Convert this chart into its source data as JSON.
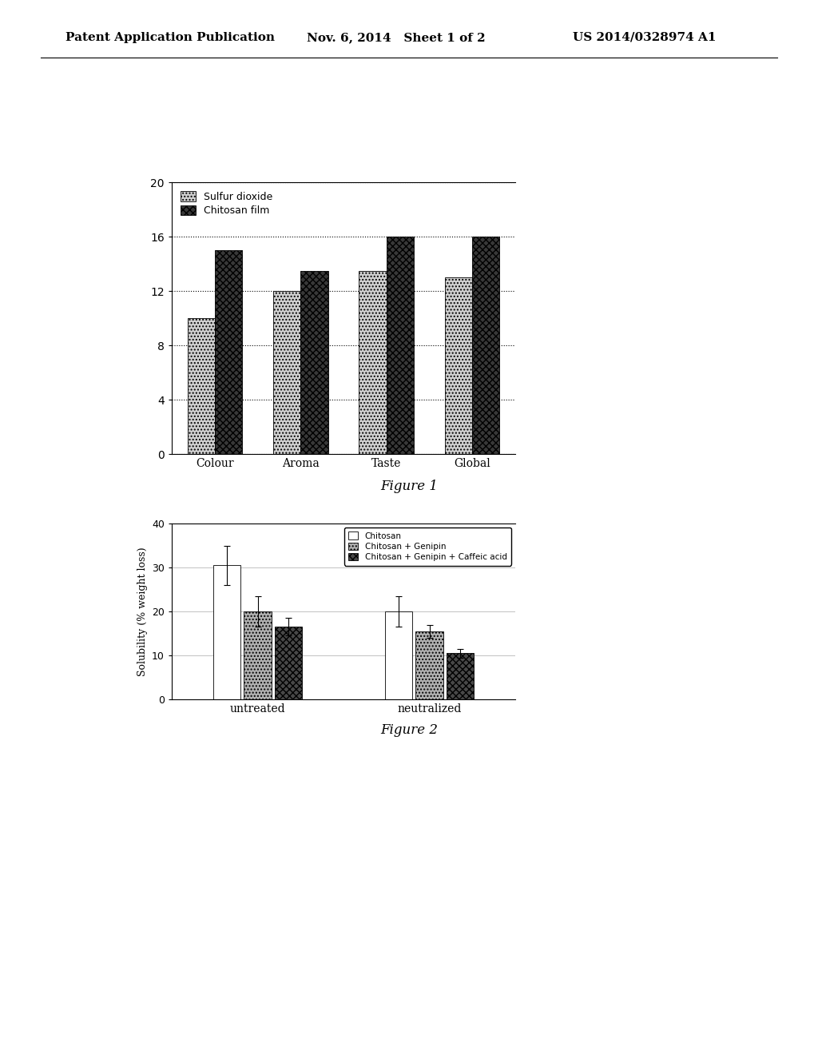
{
  "header_left": "Patent Application Publication",
  "header_mid": "Nov. 6, 2014   Sheet 1 of 2",
  "header_right": "US 2014/0328974 A1",
  "fig1": {
    "categories": [
      "Colour",
      "Aroma",
      "Taste",
      "Global"
    ],
    "sulfur_dioxide": [
      10.0,
      12.0,
      13.5,
      13.0
    ],
    "chitosan_film": [
      15.0,
      13.5,
      16.0,
      16.0
    ],
    "ylim": [
      0,
      20
    ],
    "yticks": [
      0,
      4,
      8,
      12,
      16,
      20
    ],
    "legend1": "Sulfur dioxide",
    "legend2": "Chitosan film",
    "figure_label": "Figure 1",
    "color_sulfur": "#d0d0d0",
    "color_chitosan": "#383838",
    "hatch_sulfur": "....",
    "hatch_chitosan": "xxxx"
  },
  "fig2": {
    "groups": [
      "untreated",
      "neutralized"
    ],
    "chitosan_vals": [
      30.5,
      20.0
    ],
    "chitosan_err": [
      4.5,
      3.5
    ],
    "genipin_vals": [
      20.0,
      15.5
    ],
    "genipin_err": [
      3.5,
      1.5
    ],
    "caffeic_vals": [
      16.5,
      10.5
    ],
    "caffeic_err": [
      2.0,
      1.0
    ],
    "ylim": [
      0,
      40
    ],
    "yticks": [
      0,
      10,
      20,
      30,
      40
    ],
    "ylabel": "Solubility (% weight loss)",
    "legend1": "Chitosan",
    "legend2": "Chitosan + Genipin",
    "legend3": "Chitosan + Genipin + Caffeic acid",
    "figure_label": "Figure 2",
    "color_chitosan": "#ffffff",
    "color_genipin": "#b0b0b0",
    "color_caffeic": "#484848",
    "hatch_chitosan": "",
    "hatch_genipin": "....",
    "hatch_caffeic": "xxxx"
  }
}
